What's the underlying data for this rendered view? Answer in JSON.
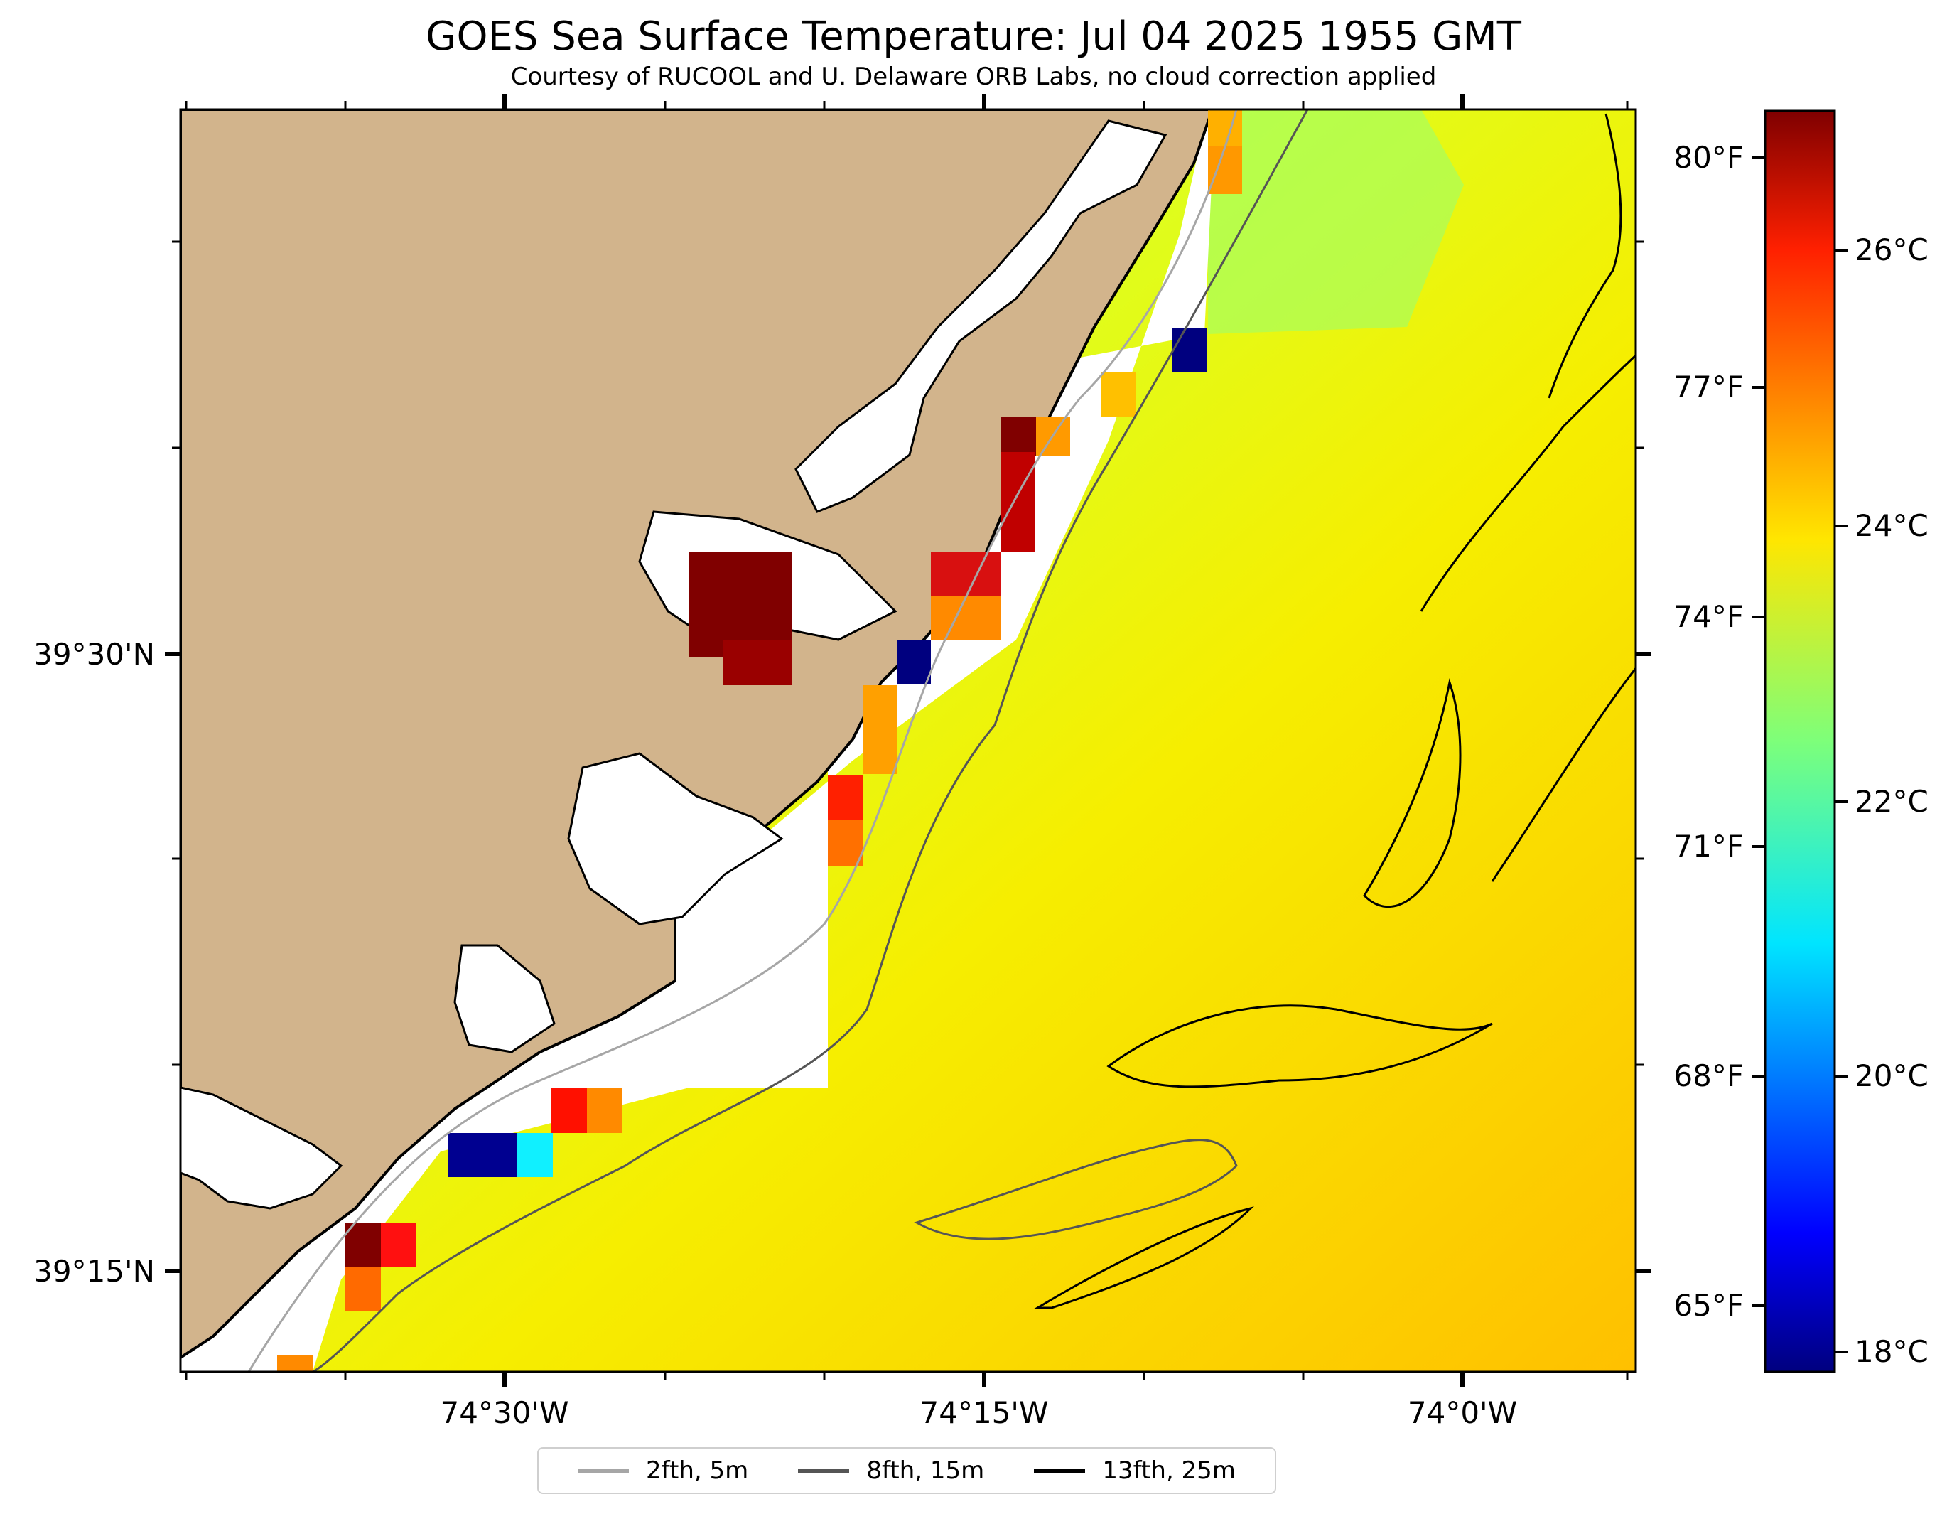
{
  "title": "GOES Sea Surface Temperature: Jul 04 2025 1955 GMT",
  "subtitle": "Courtesy of RUCOOL and U. Delaware ORB Labs, no cloud correction applied",
  "axes": {
    "x_ticks": [
      "74°30'W",
      "74°15'W",
      "74°0'W"
    ],
    "y_ticks": [
      "39°30'N",
      "39°15'N"
    ]
  },
  "colorbar": {
    "celsius_ticks": [
      "26°C",
      "24°C",
      "22°C",
      "20°C",
      "18°C"
    ],
    "fahrenheit_ticks": [
      "80°F",
      "77°F",
      "74°F",
      "71°F",
      "68°F",
      "65°F"
    ],
    "range_c": [
      17.8,
      27.4
    ],
    "colormap": "jet"
  },
  "legend": {
    "items": [
      {
        "label": "2fth, 5m",
        "color": "#a6a6a6"
      },
      {
        "label": "8fth, 15m",
        "color": "#555555"
      },
      {
        "label": "13fth, 25m",
        "color": "#000000"
      }
    ]
  },
  "colors": {
    "land": "#d2b48c",
    "no_data": "#ffffff",
    "coastline": "#000000"
  }
}
